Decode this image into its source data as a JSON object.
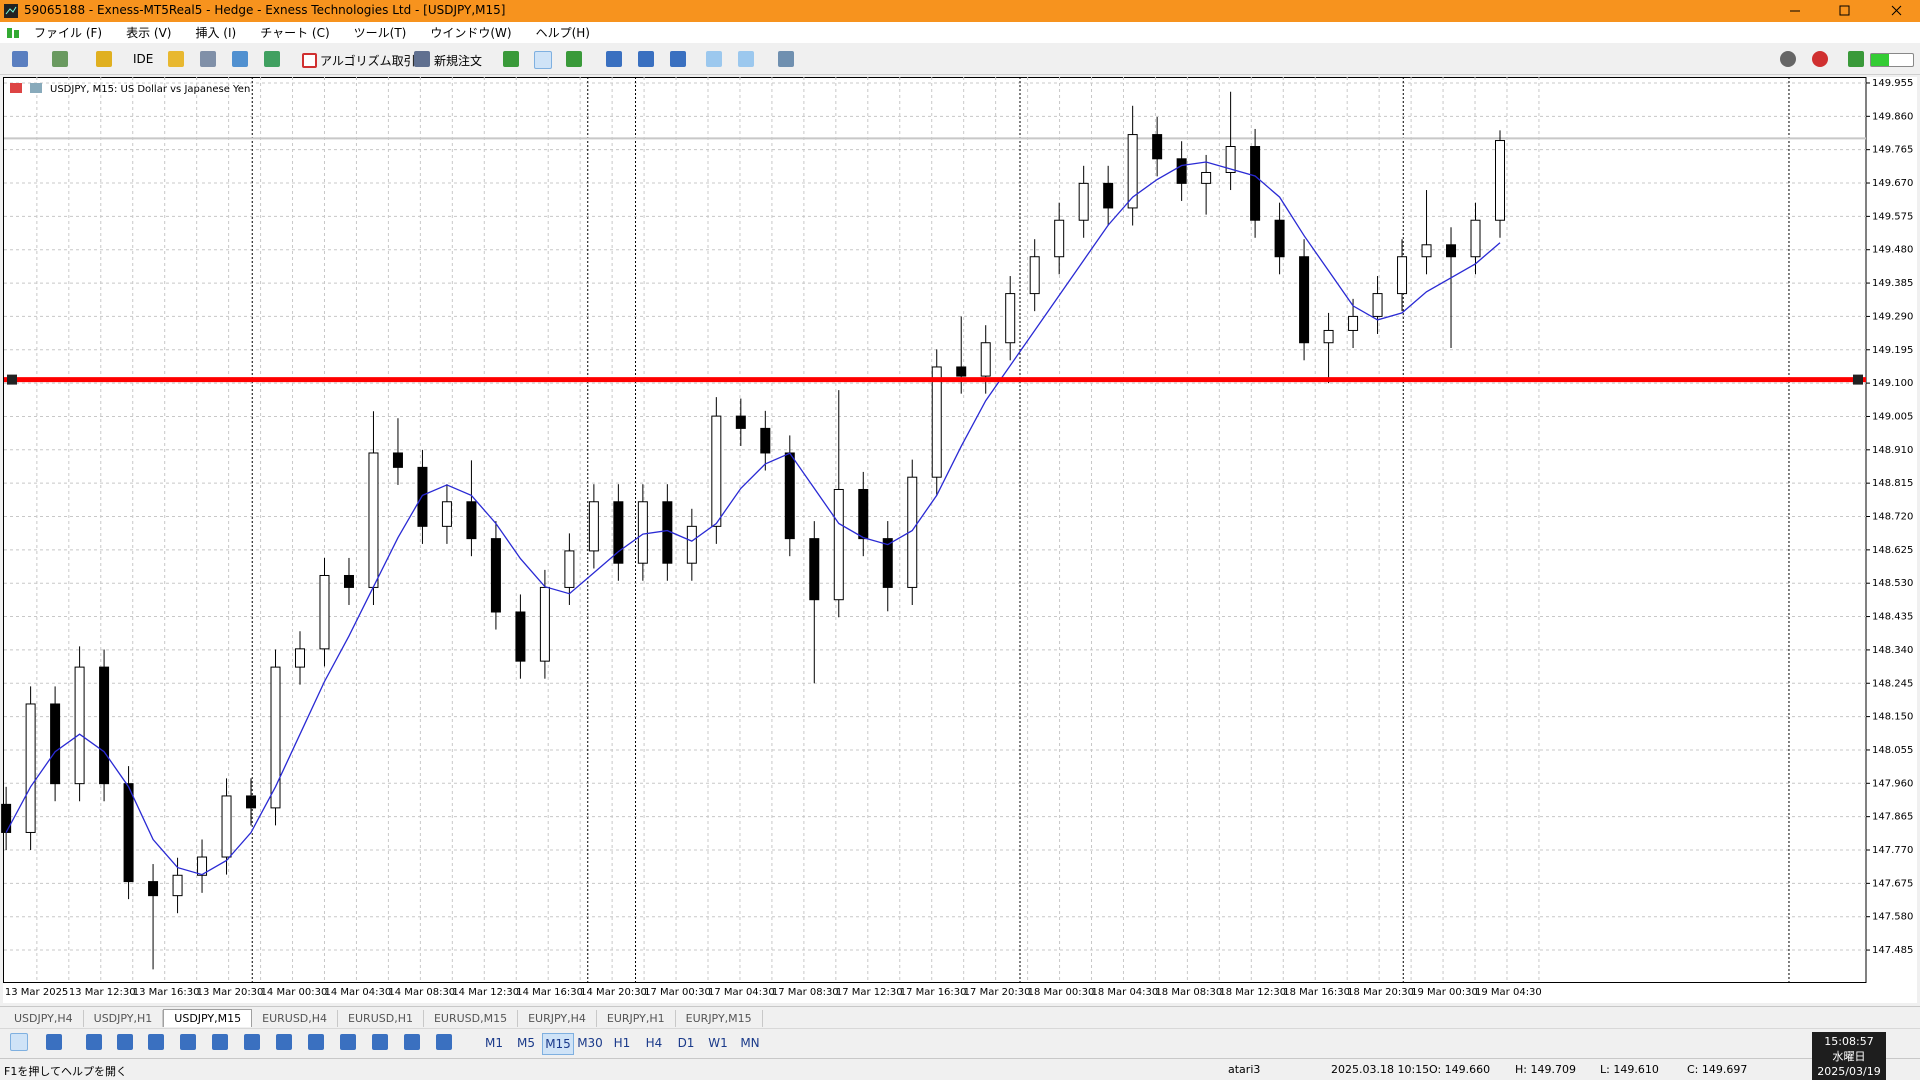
{
  "title_bar": {
    "title": "59065188 - Exness-MT5Real5 - Hedge - Exness Technologies Ltd - [USDJPY,M15]"
  },
  "menu": [
    "ファイル (F)",
    "表示 (V)",
    "挿入 (I)",
    "チャート (C)",
    "ツール(T)",
    "ウインドウ(W)",
    "ヘルプ(H)"
  ],
  "toolbar": {
    "ide": "IDE",
    "algo": "アルゴリズム取引",
    "new_order": "新規注文"
  },
  "chart_data": {
    "type": "candlestick",
    "title": "USDJPY, M15:  US Dollar vs Japanese Yen",
    "open": [
      147.9,
      147.82,
      148.186,
      147.959,
      148.291,
      147.959,
      147.68,
      147.64,
      147.698,
      147.75,
      147.924,
      147.89,
      148.291,
      148.343,
      148.552,
      148.518,
      148.901,
      148.86,
      148.692,
      148.762,
      148.657,
      148.448,
      148.308,
      148.518,
      148.622,
      148.762,
      148.587,
      148.762,
      148.587,
      148.692,
      149.006,
      148.971,
      148.901,
      148.657,
      148.483,
      148.797,
      148.657,
      148.518,
      148.832,
      149.146,
      149.12,
      149.215,
      149.355,
      149.46,
      149.564,
      149.669,
      149.599,
      149.808,
      149.739,
      149.669,
      149.7,
      149.774,
      149.564,
      149.46,
      149.215,
      149.25,
      149.29,
      149.355,
      149.46,
      149.494,
      149.46,
      149.564
    ],
    "high": [
      147.95,
      148.236,
      148.236,
      148.35,
      148.341,
      148.009,
      147.73,
      147.748,
      147.8,
      147.974,
      147.974,
      148.341,
      148.393,
      148.602,
      148.602,
      149.02,
      149.0,
      148.91,
      148.812,
      148.88,
      148.707,
      148.498,
      148.568,
      148.672,
      148.812,
      148.812,
      148.812,
      148.812,
      148.742,
      149.06,
      149.056,
      149.021,
      148.951,
      148.707,
      149.08,
      148.847,
      148.707,
      148.882,
      149.196,
      149.29,
      149.265,
      149.405,
      149.51,
      149.614,
      149.719,
      149.719,
      149.89,
      149.858,
      149.789,
      149.75,
      149.93,
      149.824,
      149.614,
      149.51,
      149.3,
      149.34,
      149.405,
      149.51,
      149.65,
      149.544,
      149.614,
      149.82
    ],
    "low": [
      147.77,
      147.77,
      147.909,
      147.909,
      147.909,
      147.63,
      147.43,
      147.59,
      147.648,
      147.7,
      147.84,
      147.84,
      148.241,
      148.293,
      148.468,
      148.468,
      148.81,
      148.642,
      148.642,
      148.607,
      148.398,
      148.258,
      148.258,
      148.468,
      148.572,
      148.537,
      148.537,
      148.537,
      148.537,
      148.642,
      148.921,
      148.851,
      148.607,
      148.245,
      148.433,
      148.607,
      148.45,
      148.468,
      148.782,
      149.07,
      149.07,
      149.165,
      149.305,
      149.41,
      149.514,
      149.549,
      149.549,
      149.689,
      149.619,
      149.58,
      149.65,
      149.514,
      149.41,
      149.165,
      149.1,
      149.2,
      149.24,
      149.305,
      149.41,
      149.2,
      149.41,
      149.514
    ],
    "close": [
      147.82,
      148.186,
      147.959,
      148.291,
      147.959,
      147.68,
      147.64,
      147.698,
      147.75,
      147.924,
      147.89,
      148.291,
      148.343,
      148.552,
      148.518,
      148.901,
      148.86,
      148.692,
      148.762,
      148.657,
      148.448,
      148.308,
      148.518,
      148.622,
      148.762,
      148.587,
      148.762,
      148.587,
      148.692,
      149.006,
      148.971,
      148.901,
      148.657,
      148.483,
      148.797,
      148.657,
      148.518,
      148.832,
      149.146,
      149.12,
      149.215,
      149.355,
      149.46,
      149.564,
      149.669,
      149.599,
      149.808,
      149.739,
      149.669,
      149.7,
      149.774,
      149.564,
      149.46,
      149.215,
      149.25,
      149.29,
      149.355,
      149.46,
      149.494,
      149.46,
      149.564,
      149.791
    ],
    "ma": {
      "color": "#2a2ad4",
      "values": [
        147.82,
        147.95,
        148.05,
        148.1,
        148.05,
        147.95,
        147.8,
        147.72,
        147.7,
        147.74,
        147.82,
        147.95,
        148.1,
        148.25,
        148.38,
        148.52,
        148.66,
        148.78,
        148.81,
        148.78,
        148.7,
        148.6,
        148.52,
        148.5,
        148.56,
        148.62,
        148.67,
        148.68,
        148.65,
        148.7,
        148.8,
        148.87,
        148.9,
        148.8,
        148.7,
        148.66,
        148.64,
        148.68,
        148.78,
        148.92,
        149.05,
        149.15,
        149.25,
        149.35,
        149.45,
        149.55,
        149.63,
        149.68,
        149.72,
        149.73,
        149.71,
        149.69,
        149.63,
        149.52,
        149.42,
        149.32,
        149.28,
        149.3,
        149.36,
        149.4,
        149.44,
        149.5
      ]
    },
    "hline": {
      "value": 149.11,
      "color": "#ff0000"
    },
    "bid_line": {
      "value": 149.797,
      "color": "#c8c8c8"
    },
    "up_color": "#ffffff",
    "down_color": "#000000",
    "ylim": [
      147.394,
      149.972
    ],
    "yticks": [
      149.955,
      {
        "value": 149.86,
        "label": "149.860"
      },
      149.765,
      {
        "value": 149.67,
        "label": "149.670"
      },
      149.575,
      {
        "value": 149.48,
        "label": "149.480"
      },
      149.385,
      {
        "value": 149.29,
        "label": "149.290"
      },
      149.195,
      {
        "value": 149.1,
        "label": "149.100"
      },
      149.005,
      {
        "value": 148.91,
        "label": "148.910"
      },
      148.815,
      {
        "value": 148.72,
        "label": "148.720"
      },
      148.625,
      {
        "value": 148.53,
        "label": "148.530"
      },
      148.435,
      {
        "value": 148.34,
        "label": "148.340"
      },
      148.245,
      {
        "value": 148.15,
        "label": "148.150"
      },
      148.055,
      {
        "value": 147.96,
        "label": "147.960"
      },
      147.865,
      {
        "value": 147.77,
        "label": "147.770"
      },
      147.675,
      {
        "value": 147.58,
        "label": "147.580"
      },
      147.485
    ],
    "x_labels": [
      "13 Mar 2025",
      "13 Mar 12:30",
      "13 Mar 16:30",
      "13 Mar 20:30",
      "14 Mar 00:30",
      "14 Mar 04:30",
      "14 Mar 08:30",
      "14 Mar 12:30",
      "14 Mar 16:30",
      "14 Mar 20:30",
      "17 Mar 00:30",
      "17 Mar 04:30",
      "17 Mar 08:30",
      "17 Mar 12:30",
      "17 Mar 16:30",
      "17 Mar 20:30",
      "18 Mar 00:30",
      "18 Mar 04:30",
      "18 Mar 08:30",
      "18 Mar 12:30",
      "18 Mar 16:30",
      "18 Mar 20:30",
      "19 Mar 00:30",
      "19 Mar 04:30"
    ],
    "grid": true
  },
  "tabs": [
    "USDJPY,H4",
    "USDJPY,H1",
    "USDJPY,M15",
    "EURUSD,H4",
    "EURUSD,H1",
    "EURUSD,M15",
    "EURJPY,H4",
    "EURJPY,H1",
    "EURJPY,M15"
  ],
  "active_tab": 2,
  "timeframes": [
    "M1",
    "M5",
    "M15",
    "M30",
    "H1",
    "H4",
    "D1",
    "W1",
    "MN"
  ],
  "active_timeframe": 2,
  "status": {
    "help": "F1を押してヘルプを開く",
    "profile": "atari3",
    "time": "2025.03.18 10:15",
    "open": "O: 149.660",
    "high": "H: 149.709",
    "low": "L: 149.610",
    "close": "C: 149.697"
  },
  "clock": {
    "time": "15:08:57",
    "day": "水曜日",
    "date": "2025/03/19"
  }
}
